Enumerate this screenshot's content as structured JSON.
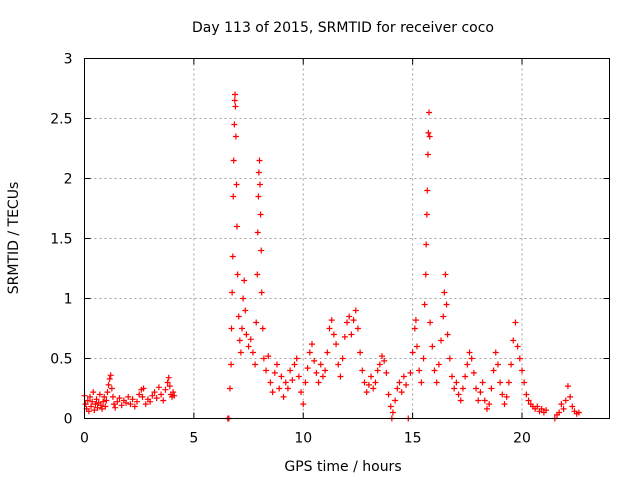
{
  "chart_data": {
    "type": "scatter",
    "title": "Day 113 of 2015, SRMTID for receiver coco",
    "xlabel": "GPS time / hours",
    "ylabel": "SRMTID / TECUs",
    "xlim": [
      0,
      24
    ],
    "ylim": [
      0,
      3
    ],
    "grid": true,
    "legend": "none",
    "marker": "+",
    "series_color": "#ff0000",
    "xticks": [
      0,
      5,
      10,
      15,
      20
    ],
    "xtick_labels": [
      "0",
      "5",
      "10",
      "15",
      "20"
    ],
    "yticks": [
      0,
      0.5,
      1,
      1.5,
      2,
      2.5,
      3
    ],
    "ytick_labels": [
      "0",
      "0.5",
      "1",
      "1.5",
      "2",
      "2.5",
      "3"
    ],
    "series": [
      {
        "name": "SRMTID",
        "points": [
          [
            0.0,
            0.19
          ],
          [
            0.05,
            0.12
          ],
          [
            0.1,
            0.08
          ],
          [
            0.15,
            0.15
          ],
          [
            0.2,
            0.06
          ],
          [
            0.25,
            0.18
          ],
          [
            0.3,
            0.1
          ],
          [
            0.35,
            0.14
          ],
          [
            0.4,
            0.22
          ],
          [
            0.45,
            0.07
          ],
          [
            0.5,
            0.12
          ],
          [
            0.55,
            0.16
          ],
          [
            0.6,
            0.09
          ],
          [
            0.65,
            0.13
          ],
          [
            0.7,
            0.2
          ],
          [
            0.75,
            0.11
          ],
          [
            0.8,
            0.08
          ],
          [
            0.85,
            0.14
          ],
          [
            0.9,
            0.18
          ],
          [
            0.95,
            0.1
          ],
          [
            1.0,
            0.15
          ],
          [
            1.05,
            0.22
          ],
          [
            1.1,
            0.28
          ],
          [
            1.15,
            0.33
          ],
          [
            1.2,
            0.36
          ],
          [
            1.25,
            0.25
          ],
          [
            1.3,
            0.18
          ],
          [
            1.35,
            0.12
          ],
          [
            1.4,
            0.09
          ],
          [
            1.5,
            0.14
          ],
          [
            1.6,
            0.17
          ],
          [
            1.7,
            0.11
          ],
          [
            1.8,
            0.15
          ],
          [
            1.9,
            0.13
          ],
          [
            2.0,
            0.18
          ],
          [
            2.1,
            0.12
          ],
          [
            2.2,
            0.16
          ],
          [
            2.3,
            0.1
          ],
          [
            2.4,
            0.14
          ],
          [
            2.5,
            0.2
          ],
          [
            2.6,
            0.24
          ],
          [
            2.65,
            0.18
          ],
          [
            2.7,
            0.25
          ],
          [
            2.8,
            0.12
          ],
          [
            2.9,
            0.16
          ],
          [
            3.0,
            0.14
          ],
          [
            3.1,
            0.19
          ],
          [
            3.2,
            0.22
          ],
          [
            3.3,
            0.17
          ],
          [
            3.4,
            0.26
          ],
          [
            3.5,
            0.2
          ],
          [
            3.6,
            0.15
          ],
          [
            3.7,
            0.24
          ],
          [
            3.8,
            0.3
          ],
          [
            3.85,
            0.34
          ],
          [
            3.9,
            0.27
          ],
          [
            3.95,
            0.2
          ],
          [
            4.0,
            0.18
          ],
          [
            4.05,
            0.22
          ],
          [
            4.1,
            0.19
          ],
          [
            6.55,
            0.0
          ],
          [
            6.6,
            0.0
          ],
          [
            6.65,
            0.25
          ],
          [
            6.7,
            0.45
          ],
          [
            6.72,
            0.75
          ],
          [
            6.75,
            1.05
          ],
          [
            6.78,
            1.35
          ],
          [
            6.8,
            1.85
          ],
          [
            6.82,
            2.15
          ],
          [
            6.85,
            2.45
          ],
          [
            6.87,
            2.65
          ],
          [
            6.88,
            2.7
          ],
          [
            6.9,
            2.6
          ],
          [
            6.92,
            2.35
          ],
          [
            6.95,
            1.95
          ],
          [
            6.97,
            1.6
          ],
          [
            7.0,
            1.2
          ],
          [
            7.05,
            0.85
          ],
          [
            7.1,
            0.65
          ],
          [
            7.15,
            0.55
          ],
          [
            7.2,
            0.75
          ],
          [
            7.25,
            1.0
          ],
          [
            7.3,
            1.15
          ],
          [
            7.35,
            0.9
          ],
          [
            7.4,
            0.7
          ],
          [
            7.5,
            0.6
          ],
          [
            7.6,
            0.66
          ],
          [
            7.7,
            0.55
          ],
          [
            7.8,
            0.45
          ],
          [
            7.85,
            0.8
          ],
          [
            7.9,
            1.2
          ],
          [
            7.92,
            1.55
          ],
          [
            7.95,
            1.85
          ],
          [
            7.97,
            2.05
          ],
          [
            8.0,
            2.15
          ],
          [
            8.02,
            1.95
          ],
          [
            8.05,
            1.7
          ],
          [
            8.08,
            1.4
          ],
          [
            8.1,
            1.05
          ],
          [
            8.15,
            0.75
          ],
          [
            8.2,
            0.5
          ],
          [
            8.3,
            0.4
          ],
          [
            8.4,
            0.52
          ],
          [
            8.5,
            0.3
          ],
          [
            8.6,
            0.22
          ],
          [
            8.7,
            0.38
          ],
          [
            8.8,
            0.45
          ],
          [
            8.9,
            0.25
          ],
          [
            9.0,
            0.35
          ],
          [
            9.1,
            0.18
          ],
          [
            9.2,
            0.3
          ],
          [
            9.3,
            0.25
          ],
          [
            9.4,
            0.4
          ],
          [
            9.5,
            0.32
          ],
          [
            9.6,
            0.45
          ],
          [
            9.7,
            0.5
          ],
          [
            9.8,
            0.35
          ],
          [
            9.9,
            0.22
          ],
          [
            10.0,
            0.12
          ],
          [
            10.1,
            0.3
          ],
          [
            10.2,
            0.42
          ],
          [
            10.3,
            0.55
          ],
          [
            10.4,
            0.62
          ],
          [
            10.5,
            0.48
          ],
          [
            10.6,
            0.38
          ],
          [
            10.7,
            0.3
          ],
          [
            10.8,
            0.45
          ],
          [
            10.9,
            0.35
          ],
          [
            11.0,
            0.4
          ],
          [
            11.1,
            0.55
          ],
          [
            11.2,
            0.75
          ],
          [
            11.3,
            0.82
          ],
          [
            11.4,
            0.7
          ],
          [
            11.5,
            0.62
          ],
          [
            11.6,
            0.45
          ],
          [
            11.7,
            0.35
          ],
          [
            11.8,
            0.5
          ],
          [
            11.9,
            0.68
          ],
          [
            12.0,
            0.8
          ],
          [
            12.1,
            0.85
          ],
          [
            12.2,
            0.7
          ],
          [
            12.3,
            0.82
          ],
          [
            12.4,
            0.9
          ],
          [
            12.5,
            0.75
          ],
          [
            12.6,
            0.55
          ],
          [
            12.7,
            0.4
          ],
          [
            12.8,
            0.3
          ],
          [
            12.9,
            0.22
          ],
          [
            13.0,
            0.28
          ],
          [
            13.1,
            0.35
          ],
          [
            13.2,
            0.25
          ],
          [
            13.3,
            0.3
          ],
          [
            13.4,
            0.4
          ],
          [
            13.5,
            0.45
          ],
          [
            13.6,
            0.52
          ],
          [
            13.7,
            0.48
          ],
          [
            13.8,
            0.38
          ],
          [
            13.9,
            0.2
          ],
          [
            14.0,
            0.1
          ],
          [
            14.05,
            0.0
          ],
          [
            14.1,
            0.05
          ],
          [
            14.2,
            0.15
          ],
          [
            14.3,
            0.25
          ],
          [
            14.4,
            0.3
          ],
          [
            14.5,
            0.22
          ],
          [
            14.6,
            0.35
          ],
          [
            14.7,
            0.28
          ],
          [
            14.8,
            0.0
          ],
          [
            14.9,
            0.38
          ],
          [
            15.0,
            0.55
          ],
          [
            15.1,
            0.75
          ],
          [
            15.15,
            0.82
          ],
          [
            15.2,
            0.6
          ],
          [
            15.3,
            0.4
          ],
          [
            15.4,
            0.3
          ],
          [
            15.5,
            0.5
          ],
          [
            15.55,
            0.95
          ],
          [
            15.6,
            1.2
          ],
          [
            15.62,
            1.45
          ],
          [
            15.65,
            1.7
          ],
          [
            15.67,
            1.9
          ],
          [
            15.7,
            2.2
          ],
          [
            15.72,
            2.38
          ],
          [
            15.75,
            2.55
          ],
          [
            15.78,
            2.35
          ],
          [
            15.8,
            0.8
          ],
          [
            15.9,
            0.6
          ],
          [
            16.0,
            0.4
          ],
          [
            16.1,
            0.3
          ],
          [
            16.2,
            0.45
          ],
          [
            16.3,
            0.65
          ],
          [
            16.4,
            0.85
          ],
          [
            16.45,
            1.05
          ],
          [
            16.5,
            1.2
          ],
          [
            16.55,
            0.95
          ],
          [
            16.6,
            0.7
          ],
          [
            16.7,
            0.5
          ],
          [
            16.8,
            0.35
          ],
          [
            16.9,
            0.25
          ],
          [
            17.0,
            0.3
          ],
          [
            17.1,
            0.2
          ],
          [
            17.2,
            0.15
          ],
          [
            17.3,
            0.25
          ],
          [
            17.4,
            0.35
          ],
          [
            17.5,
            0.45
          ],
          [
            17.6,
            0.55
          ],
          [
            17.7,
            0.5
          ],
          [
            17.8,
            0.38
          ],
          [
            17.9,
            0.25
          ],
          [
            18.0,
            0.15
          ],
          [
            18.1,
            0.22
          ],
          [
            18.2,
            0.3
          ],
          [
            18.3,
            0.15
          ],
          [
            18.4,
            0.08
          ],
          [
            18.5,
            0.12
          ],
          [
            18.6,
            0.25
          ],
          [
            18.7,
            0.4
          ],
          [
            18.8,
            0.55
          ],
          [
            18.9,
            0.45
          ],
          [
            19.0,
            0.3
          ],
          [
            19.1,
            0.2
          ],
          [
            19.2,
            0.12
          ],
          [
            19.3,
            0.18
          ],
          [
            19.4,
            0.3
          ],
          [
            19.5,
            0.45
          ],
          [
            19.6,
            0.65
          ],
          [
            19.7,
            0.8
          ],
          [
            19.8,
            0.6
          ],
          [
            19.9,
            0.5
          ],
          [
            20.0,
            0.4
          ],
          [
            20.1,
            0.3
          ],
          [
            20.2,
            0.2
          ],
          [
            20.3,
            0.15
          ],
          [
            20.4,
            0.12
          ],
          [
            20.5,
            0.1
          ],
          [
            20.6,
            0.08
          ],
          [
            20.7,
            0.1
          ],
          [
            20.8,
            0.06
          ],
          [
            20.9,
            0.08
          ],
          [
            21.0,
            0.05
          ],
          [
            21.1,
            0.07
          ],
          [
            21.5,
            0.0
          ],
          [
            21.6,
            0.03
          ],
          [
            21.7,
            0.05
          ],
          [
            21.8,
            0.12
          ],
          [
            21.9,
            0.08
          ],
          [
            22.0,
            0.15
          ],
          [
            22.1,
            0.27
          ],
          [
            22.2,
            0.18
          ],
          [
            22.3,
            0.1
          ],
          [
            22.4,
            0.06
          ],
          [
            22.5,
            0.04
          ],
          [
            22.6,
            0.05
          ]
        ]
      }
    ]
  }
}
